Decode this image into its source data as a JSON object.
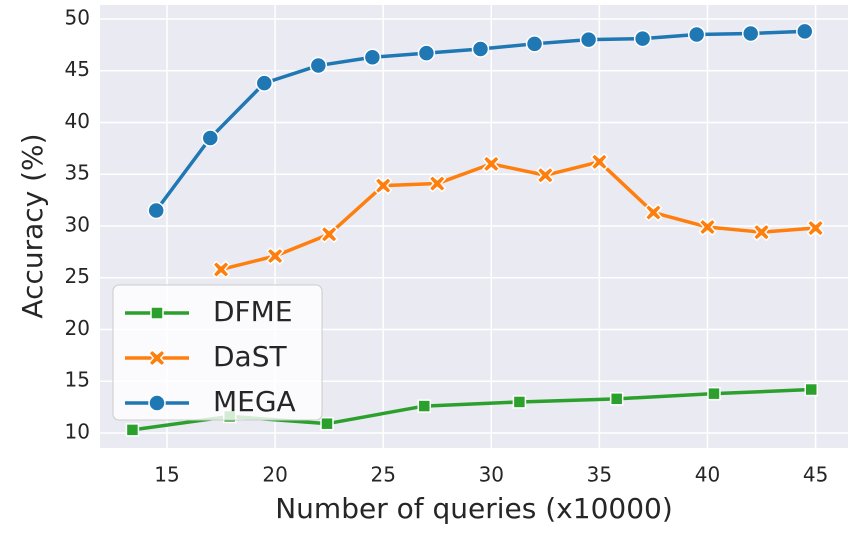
{
  "chart_data": {
    "type": "line",
    "x_label": "Number of queries (x10000)",
    "y_label": "Accuracy (%)",
    "xlim": [
      11.9,
      46.5
    ],
    "xticks": [
      15,
      20,
      25,
      30,
      35,
      40,
      45
    ],
    "ylim": [
      8.55,
      51.35
    ],
    "yticks": [
      10,
      15,
      20,
      25,
      30,
      35,
      40,
      45,
      50
    ],
    "grid": true,
    "legend": "lower left",
    "series": [
      {
        "name": "DFME",
        "color": "#2ca02c",
        "marker": "square",
        "x": [
          13.4,
          17.9,
          22.4,
          26.9,
          31.3,
          35.8,
          40.3,
          44.8
        ],
        "values": [
          10.3,
          11.6,
          10.9,
          12.6,
          13.0,
          13.3,
          13.8,
          14.2
        ]
      },
      {
        "name": "DaST",
        "color": "#ff7f0e",
        "marker": "x",
        "x": [
          17.5,
          20,
          22.5,
          25,
          27.5,
          30,
          32.5,
          35,
          37.5,
          40,
          42.5,
          45
        ],
        "values": [
          25.8,
          27.1,
          29.2,
          33.9,
          34.1,
          36.0,
          34.9,
          36.2,
          31.3,
          29.9,
          29.4,
          29.8
        ]
      },
      {
        "name": "MEGA",
        "color": "#1f77b4",
        "marker": "circle",
        "x": [
          14.5,
          17,
          19.5,
          22,
          24.5,
          27,
          29.5,
          32,
          34.5,
          37,
          39.5,
          42,
          44.5
        ],
        "values": [
          31.5,
          38.5,
          43.8,
          45.5,
          46.3,
          46.7,
          47.1,
          47.6,
          48.0,
          48.1,
          48.5,
          48.6,
          48.8
        ]
      }
    ]
  }
}
